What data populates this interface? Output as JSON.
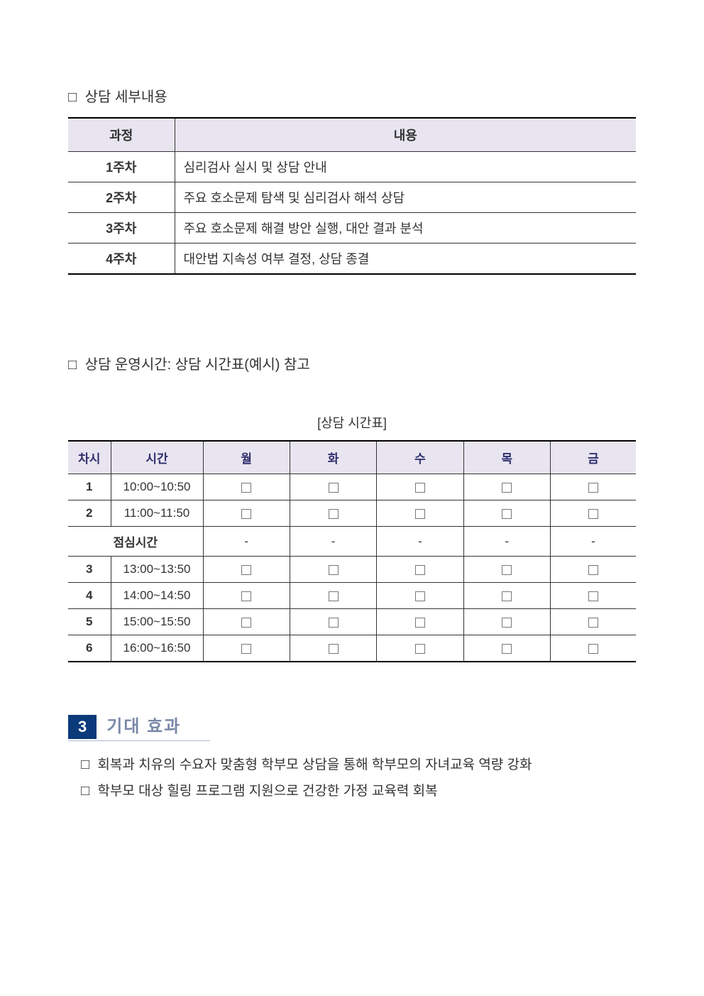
{
  "detail_heading": "상담 세부내용",
  "operation_heading": "상담 운영시간: 상담 시간표(예시) 참고",
  "timetable_caption": "[상담 시간표]",
  "checkbox_glyph": "□",
  "dash": "-",
  "table1": {
    "header_process": "과정",
    "header_content": "내용",
    "rows": [
      {
        "label": "1주차",
        "content": "심리검사 실시 및 상담 안내"
      },
      {
        "label": "2주차",
        "content": "주요 호소문제 탐색 및 심리검사 해석 상담"
      },
      {
        "label": "3주차",
        "content": "주요 호소문제 해결 방안 실행, 대안 결과 분석"
      },
      {
        "label": "4주차",
        "content": "대안법 지속성 여부 결정, 상담 종결"
      }
    ]
  },
  "table2": {
    "headers": {
      "period": "차시",
      "time": "시간",
      "mon": "월",
      "tue": "화",
      "wed": "수",
      "thu": "목",
      "fri": "금"
    },
    "rows": [
      {
        "period": "1",
        "time": "10:00~10:50"
      },
      {
        "period": "2",
        "time": "11:00~11:50"
      },
      {
        "lunch": true,
        "label": "점심시간"
      },
      {
        "period": "3",
        "time": "13:00~13:50"
      },
      {
        "period": "4",
        "time": "14:00~14:50"
      },
      {
        "period": "5",
        "time": "15:00~15:50"
      },
      {
        "period": "6",
        "time": "16:00~16:50"
      }
    ]
  },
  "section3": {
    "number": "3",
    "title": "기대 효과",
    "bullets": [
      "회복과 치유의  수요자 맞춤형 학부모 상담을 통해 학부모의 자녀교육 역량 강화",
      "학부모 대상 힐링 프로그램 지원으로 건강한 가정 교육력 회복"
    ]
  },
  "colors": {
    "header_bg": "#e8e5f0",
    "section_num_bg": "#0a3a7a",
    "section_title_color": "#7a88a8",
    "section_underline": "#aab7d8"
  }
}
